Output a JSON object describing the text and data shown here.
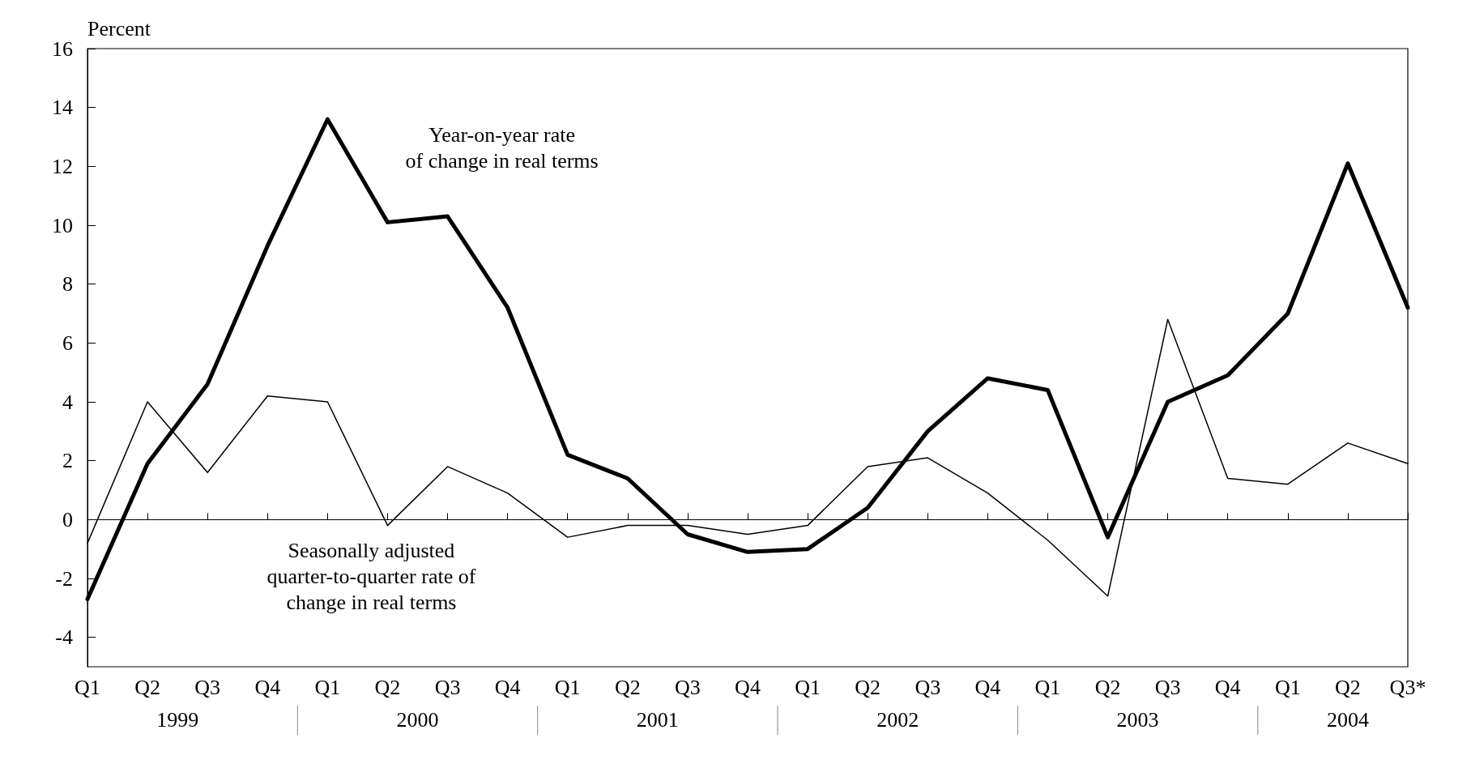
{
  "chart_data": {
    "type": "line",
    "ylabel": "Percent",
    "categories": [
      "Q1",
      "Q2",
      "Q3",
      "Q4",
      "Q1",
      "Q2",
      "Q3",
      "Q4",
      "Q1",
      "Q2",
      "Q3",
      "Q4",
      "Q1",
      "Q2",
      "Q3",
      "Q4",
      "Q1",
      "Q2",
      "Q3",
      "Q4",
      "Q1",
      "Q2",
      "Q3*"
    ],
    "series": [
      {
        "color": "#000000",
        "values": [
          -2.7,
          1.9,
          4.6,
          9.3,
          13.6,
          10.1,
          10.3,
          7.2,
          2.2,
          1.4,
          -0.5,
          -1.1,
          -1.0,
          0.4,
          3.0,
          4.8,
          4.4,
          -0.6,
          4.0,
          4.9,
          7.0,
          12.1,
          7.2
        ]
      },
      {
        "color": "#000000",
        "values": [
          -0.8,
          4.0,
          1.6,
          4.2,
          4.0,
          -0.2,
          1.8,
          0.9,
          -0.6,
          -0.2,
          -0.2,
          -0.5,
          -0.2,
          1.8,
          2.1,
          0.9,
          -0.7,
          -2.6,
          6.8,
          1.4,
          1.2,
          2.6,
          1.9
        ]
      }
    ],
    "ylim": [
      -5,
      16
    ],
    "yticks": [
      -4,
      -2,
      0,
      2,
      4,
      6,
      8,
      10,
      12,
      14,
      16
    ],
    "ref_lines": [
      {
        "axis": "y",
        "value": 0,
        "color": "#000000"
      }
    ],
    "annotations": [
      "Year-on-year rate\nof change in real terms",
      "Seasonally adjusted\nquarter-to-quarter rate of\nchange in real terms",
      "1999",
      "2000",
      "2001",
      "2002",
      "2003",
      "2004"
    ],
    "grid": false,
    "marker": "none",
    "line_style": "solid"
  }
}
